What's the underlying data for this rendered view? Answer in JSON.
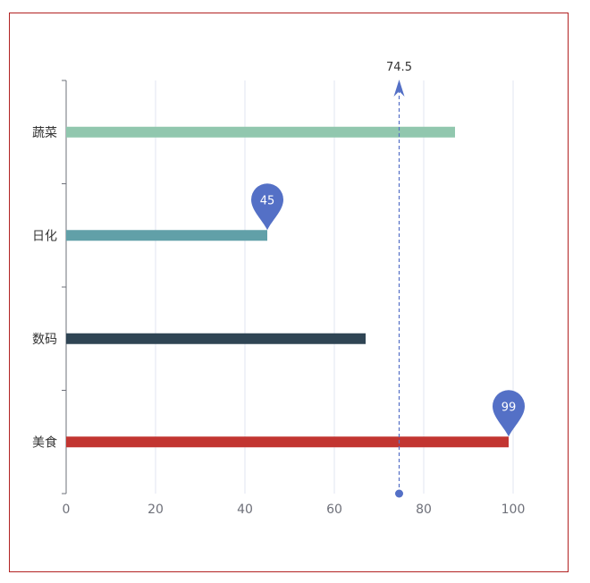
{
  "chart_data": {
    "type": "bar",
    "orientation": "horizontal",
    "categories": [
      "美食",
      "数码",
      "日化",
      "蔬菜"
    ],
    "values": [
      99,
      67,
      45,
      87
    ],
    "colors": [
      "#c23531",
      "#2f4554",
      "#61a0a8",
      "#91c7ae"
    ],
    "xlim": [
      0,
      100
    ],
    "x_ticks": [
      "0",
      "20",
      "40",
      "60",
      "80",
      "100"
    ],
    "grid": true,
    "mark_points": [
      {
        "category": "日化",
        "value": 45,
        "label": "45"
      },
      {
        "category": "美食",
        "value": 99,
        "label": "99"
      }
    ],
    "mark_line": {
      "value": 74.5,
      "label": "74.5"
    },
    "mark_color": "#5470c6"
  }
}
